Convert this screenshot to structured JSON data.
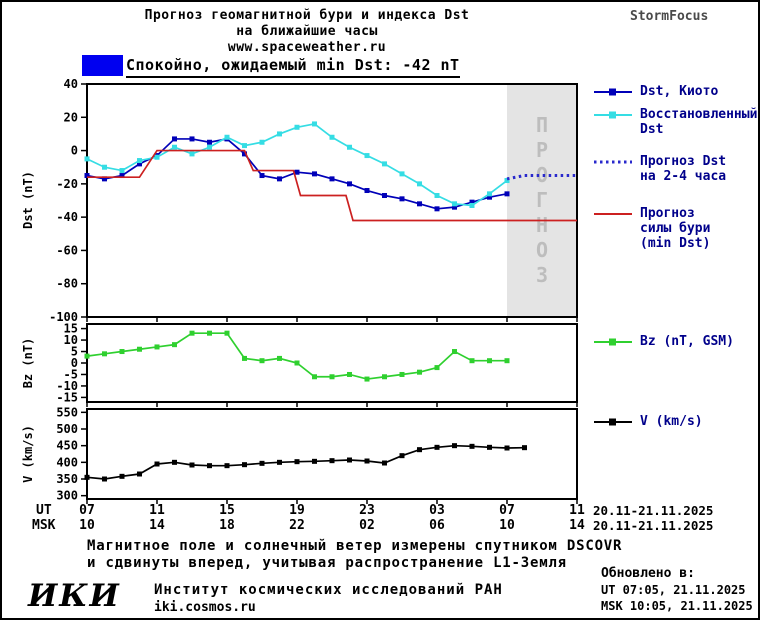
{
  "header": {
    "title_line1": "Прогноз геомагнитной бури и индекса Dst",
    "title_line2": "на ближайшие часы",
    "site": "www.spaceweather.ru",
    "brand": "StormFocus"
  },
  "status": {
    "box_color": "#0000f0",
    "text": "Спокойно, ожидаемый min Dst: -42 nT"
  },
  "xaxis": {
    "ut_label": "UT",
    "msk_label": "MSK",
    "tick_hours": [
      7,
      11,
      15,
      19,
      23,
      27,
      31,
      35
    ],
    "ut_tick_labels": [
      "07",
      "11",
      "15",
      "19",
      "23",
      "03",
      "07",
      "11"
    ],
    "msk_tick_labels": [
      "10",
      "14",
      "18",
      "22",
      "02",
      "06",
      "10",
      "14"
    ],
    "ut_date_range": "20.11-21.11.2025",
    "msk_date_range": "20.11-21.11.2025"
  },
  "chart_data": [
    {
      "type": "line",
      "ylabel": "Dst (nT)",
      "ylim": [
        -100,
        40
      ],
      "yticks": [
        40,
        20,
        0,
        -20,
        -40,
        -60,
        -80,
        -100
      ],
      "xlim": [
        7,
        35
      ],
      "xticks": [
        7,
        11,
        15,
        19,
        23,
        27,
        31,
        35
      ],
      "forecast_region": {
        "x_range": [
          31,
          35
        ],
        "label": "ПРОГНОЗ",
        "fill": "#e4e4e4",
        "label_color": "#bdbdbd"
      },
      "series": [
        {
          "name": "Dst, Киото",
          "name_lines": [
            "Dst, Киото"
          ],
          "color": "#0000b8",
          "style": "solid",
          "marker": true,
          "x": [
            7,
            8,
            9,
            10,
            11,
            12,
            13,
            14,
            15,
            16,
            17,
            18,
            19,
            20,
            21,
            22,
            23,
            24,
            25,
            26,
            27,
            28,
            29,
            30,
            31
          ],
          "y": [
            -15,
            -17,
            -15,
            -8,
            -3,
            7,
            7,
            5,
            7,
            -2,
            -15,
            -17,
            -13,
            -14,
            -17,
            -20,
            -24,
            -27,
            -29,
            -32,
            -35,
            -34,
            -31,
            -28,
            -26
          ]
        },
        {
          "name": "Восстановленный Dst",
          "name_lines": [
            "Восстановленный",
            "Dst"
          ],
          "color": "#35dde4",
          "style": "solid",
          "marker": true,
          "x": [
            7,
            8,
            9,
            10,
            11,
            12,
            13,
            14,
            15,
            16,
            17,
            18,
            19,
            20,
            21,
            22,
            23,
            24,
            25,
            26,
            27,
            28,
            29,
            30,
            31
          ],
          "y": [
            -5,
            -10,
            -12,
            -6,
            -4,
            2,
            -2,
            2,
            8,
            3,
            5,
            10,
            14,
            16,
            8,
            2,
            -3,
            -8,
            -14,
            -20,
            -27,
            -32,
            -33,
            -26,
            -18
          ]
        },
        {
          "name": "Прогноз Dst на 2-4 часа",
          "name_lines": [
            "Прогноз Dst",
            "на 2-4 часа"
          ],
          "color": "#2929cc",
          "style": "dotted",
          "marker": false,
          "x": [
            31,
            32,
            35
          ],
          "y": [
            -17,
            -15,
            -15
          ]
        },
        {
          "name": "Прогноз силы бури (min Dst)",
          "name_lines": [
            "Прогноз",
            "силы бури",
            "(min Dst)"
          ],
          "color": "#cc2020",
          "style": "solid",
          "marker": false,
          "x": [
            7,
            10,
            11,
            16,
            16.5,
            18.8,
            19.2,
            21.8,
            22.2,
            35
          ],
          "y": [
            -16,
            -16,
            0,
            0,
            -12,
            -12,
            -27,
            -27,
            -42,
            -42
          ]
        }
      ]
    },
    {
      "type": "line",
      "ylabel": "Bz (nT)",
      "ylim": [
        -17,
        17
      ],
      "yticks": [
        15,
        10,
        5,
        0,
        -5,
        -10,
        -15
      ],
      "xlim": [
        7,
        35
      ],
      "xticks": [
        7,
        11,
        15,
        19,
        23,
        27,
        31,
        35
      ],
      "series": [
        {
          "name": "Bz (nT, GSM)",
          "name_lines": [
            "Bz (nT, GSM)"
          ],
          "color": "#2fd02f",
          "style": "solid",
          "marker": true,
          "x": [
            7,
            8,
            9,
            10,
            11,
            12,
            13,
            14,
            15,
            16,
            17,
            18,
            19,
            20,
            21,
            22,
            23,
            24,
            25,
            26,
            27,
            28,
            29,
            30,
            31
          ],
          "y": [
            3,
            4,
            5,
            6,
            7,
            8,
            13,
            13,
            13,
            2,
            1,
            2,
            0,
            -6,
            -6,
            -5,
            -7,
            -6,
            -5,
            -4,
            -2,
            5,
            1,
            1,
            1
          ]
        }
      ]
    },
    {
      "type": "line",
      "ylabel": "V (km/s)",
      "ylim": [
        290,
        560
      ],
      "yticks": [
        550,
        500,
        450,
        400,
        350,
        300
      ],
      "xlim": [
        7,
        35
      ],
      "xticks": [
        7,
        11,
        15,
        19,
        23,
        27,
        31,
        35
      ],
      "series": [
        {
          "name": "V (km/s)",
          "name_lines": [
            "V (km/s)"
          ],
          "color": "#000000",
          "style": "solid",
          "marker": true,
          "x": [
            7,
            8,
            9,
            10,
            11,
            12,
            13,
            14,
            15,
            16,
            17,
            18,
            19,
            20,
            21,
            22,
            23,
            24,
            25,
            26,
            27,
            28,
            29,
            30,
            31,
            32
          ],
          "y": [
            355,
            350,
            358,
            365,
            395,
            400,
            392,
            390,
            390,
            393,
            397,
            400,
            402,
            403,
            405,
            407,
            404,
            398,
            420,
            438,
            445,
            450,
            448,
            445,
            443,
            444
          ]
        }
      ]
    }
  ],
  "footer": {
    "note_line1": "Магнитное поле и солнечный ветер измерены спутником DSCOVR",
    "note_line2": "и сдвинуты вперед, учитывая распространение L1-Земля",
    "logo": "ИКИ",
    "institute": "Институт космических исследований РАН",
    "institute_site": "iki.cosmos.ru",
    "updated_label": "Обновлено в:",
    "updated_ut": "UT  07:05, 21.11.2025",
    "updated_msk": "MSK 10:05, 21.11.2025"
  }
}
